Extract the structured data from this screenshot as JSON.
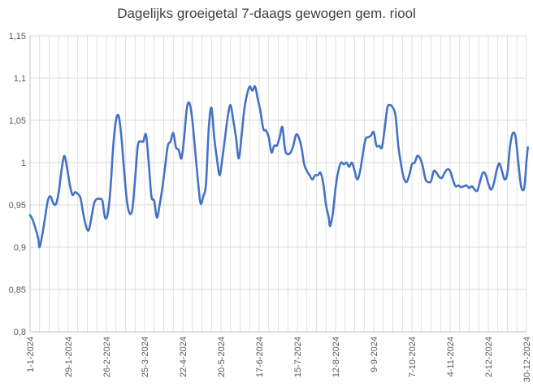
{
  "chart_data": {
    "type": "line",
    "title": "Dagelijks groeigetal 7-daags gewogen gem. riool",
    "xlabel": "",
    "ylabel": "",
    "ylim": [
      0.8,
      1.15
    ],
    "yticks": [
      0.8,
      0.85,
      0.9,
      0.95,
      1.0,
      1.05,
      1.1,
      1.15
    ],
    "ytick_labels": [
      "0,8",
      "0,85",
      "0,9",
      "0,95",
      "1",
      "1,05",
      "1,1",
      "1,15"
    ],
    "xlim": [
      "2024-01-01",
      "2024-12-30"
    ],
    "xticks": [
      "2024-01-01",
      "2024-01-29",
      "2024-02-26",
      "2024-03-25",
      "2024-04-22",
      "2024-05-20",
      "2024-06-17",
      "2024-07-15",
      "2024-08-12",
      "2024-09-09",
      "2024-10-07",
      "2024-11-04",
      "2024-12-02",
      "2024-12-30"
    ],
    "xtick_labels": [
      "1-1-2024",
      "29-1-2024",
      "26-2-2024",
      "25-3-2024",
      "22-4-2024",
      "20-5-2024",
      "17-6-2024",
      "15-7-2024",
      "12-8-2024",
      "9-9-2024",
      "7-10-2024",
      "4-11-2024",
      "2-12-2024",
      "30-12-2024"
    ],
    "grid": {
      "vertical": true,
      "horizontal": true
    },
    "legend": "none",
    "colors": {
      "line": "#4472C4",
      "grid": "#D9D9D9",
      "text": "#595959",
      "title": "#404040"
    },
    "series": [
      {
        "points": [
          [
            "2024-01-01",
            0.938
          ],
          [
            "2024-01-03",
            0.932
          ],
          [
            "2024-01-05",
            0.922
          ],
          [
            "2024-01-07",
            0.91
          ],
          [
            "2024-01-08",
            0.9
          ],
          [
            "2024-01-10",
            0.915
          ],
          [
            "2024-01-12",
            0.935
          ],
          [
            "2024-01-14",
            0.955
          ],
          [
            "2024-01-16",
            0.96
          ],
          [
            "2024-01-18",
            0.952
          ],
          [
            "2024-01-20",
            0.951
          ],
          [
            "2024-01-22",
            0.965
          ],
          [
            "2024-01-24",
            0.99
          ],
          [
            "2024-01-26",
            1.008
          ],
          [
            "2024-01-28",
            0.995
          ],
          [
            "2024-01-30",
            0.975
          ],
          [
            "2024-02-01",
            0.962
          ],
          [
            "2024-02-03",
            0.965
          ],
          [
            "2024-02-05",
            0.963
          ],
          [
            "2024-02-07",
            0.958
          ],
          [
            "2024-02-09",
            0.94
          ],
          [
            "2024-02-11",
            0.925
          ],
          [
            "2024-02-13",
            0.92
          ],
          [
            "2024-02-15",
            0.935
          ],
          [
            "2024-02-17",
            0.952
          ],
          [
            "2024-02-19",
            0.957
          ],
          [
            "2024-02-21",
            0.957
          ],
          [
            "2024-02-23",
            0.955
          ],
          [
            "2024-02-25",
            0.935
          ],
          [
            "2024-02-27",
            0.94
          ],
          [
            "2024-02-29",
            0.97
          ],
          [
            "2024-03-02",
            1.02
          ],
          [
            "2024-03-04",
            1.05
          ],
          [
            "2024-03-06",
            1.055
          ],
          [
            "2024-03-08",
            1.03
          ],
          [
            "2024-03-10",
            0.99
          ],
          [
            "2024-03-12",
            0.955
          ],
          [
            "2024-03-14",
            0.94
          ],
          [
            "2024-03-16",
            0.945
          ],
          [
            "2024-03-18",
            0.98
          ],
          [
            "2024-03-20",
            1.02
          ],
          [
            "2024-03-22",
            1.025
          ],
          [
            "2024-03-24",
            1.025
          ],
          [
            "2024-03-26",
            1.033
          ],
          [
            "2024-03-28",
            1.0
          ],
          [
            "2024-03-30",
            0.96
          ],
          [
            "2024-04-01",
            0.955
          ],
          [
            "2024-04-03",
            0.935
          ],
          [
            "2024-04-05",
            0.95
          ],
          [
            "2024-04-07",
            0.97
          ],
          [
            "2024-04-09",
            0.995
          ],
          [
            "2024-04-11",
            1.02
          ],
          [
            "2024-04-13",
            1.025
          ],
          [
            "2024-04-15",
            1.035
          ],
          [
            "2024-04-17",
            1.018
          ],
          [
            "2024-04-19",
            1.015
          ],
          [
            "2024-04-21",
            1.005
          ],
          [
            "2024-04-23",
            1.03
          ],
          [
            "2024-04-25",
            1.065
          ],
          [
            "2024-04-27",
            1.07
          ],
          [
            "2024-04-29",
            1.05
          ],
          [
            "2024-05-01",
            1.015
          ],
          [
            "2024-05-03",
            0.98
          ],
          [
            "2024-05-05",
            0.952
          ],
          [
            "2024-05-07",
            0.96
          ],
          [
            "2024-05-09",
            0.975
          ],
          [
            "2024-05-11",
            1.04
          ],
          [
            "2024-05-13",
            1.065
          ],
          [
            "2024-05-15",
            1.03
          ],
          [
            "2024-05-17",
            1.005
          ],
          [
            "2024-05-19",
            0.985
          ],
          [
            "2024-05-21",
            1.005
          ],
          [
            "2024-05-23",
            1.03
          ],
          [
            "2024-05-25",
            1.055
          ],
          [
            "2024-05-27",
            1.068
          ],
          [
            "2024-05-29",
            1.05
          ],
          [
            "2024-05-31",
            1.03
          ],
          [
            "2024-06-02",
            1.005
          ],
          [
            "2024-06-04",
            1.03
          ],
          [
            "2024-06-06",
            1.062
          ],
          [
            "2024-06-08",
            1.08
          ],
          [
            "2024-06-10",
            1.09
          ],
          [
            "2024-06-12",
            1.085
          ],
          [
            "2024-06-14",
            1.09
          ],
          [
            "2024-06-16",
            1.075
          ],
          [
            "2024-06-18",
            1.06
          ],
          [
            "2024-06-20",
            1.04
          ],
          [
            "2024-06-22",
            1.038
          ],
          [
            "2024-06-24",
            1.03
          ],
          [
            "2024-06-26",
            1.012
          ],
          [
            "2024-06-28",
            1.02
          ],
          [
            "2024-06-30",
            1.02
          ],
          [
            "2024-07-02",
            1.03
          ],
          [
            "2024-07-04",
            1.042
          ],
          [
            "2024-07-06",
            1.015
          ],
          [
            "2024-07-08",
            1.01
          ],
          [
            "2024-07-10",
            1.012
          ],
          [
            "2024-07-12",
            1.02
          ],
          [
            "2024-07-14",
            1.033
          ],
          [
            "2024-07-16",
            1.03
          ],
          [
            "2024-07-18",
            1.018
          ],
          [
            "2024-07-20",
            0.998
          ],
          [
            "2024-07-22",
            0.99
          ],
          [
            "2024-07-24",
            0.985
          ],
          [
            "2024-07-26",
            0.98
          ],
          [
            "2024-07-28",
            0.985
          ],
          [
            "2024-07-30",
            0.985
          ],
          [
            "2024-08-01",
            0.988
          ],
          [
            "2024-08-03",
            0.975
          ],
          [
            "2024-08-05",
            0.95
          ],
          [
            "2024-08-07",
            0.935
          ],
          [
            "2024-08-08",
            0.925
          ],
          [
            "2024-08-10",
            0.94
          ],
          [
            "2024-08-12",
            0.97
          ],
          [
            "2024-08-14",
            0.99
          ],
          [
            "2024-08-16",
            1.0
          ],
          [
            "2024-08-18",
            0.998
          ],
          [
            "2024-08-20",
            1.0
          ],
          [
            "2024-08-22",
            0.995
          ],
          [
            "2024-08-24",
            1.0
          ],
          [
            "2024-08-26",
            0.99
          ],
          [
            "2024-08-28",
            0.98
          ],
          [
            "2024-08-30",
            0.99
          ],
          [
            "2024-09-01",
            1.01
          ],
          [
            "2024-09-03",
            1.028
          ],
          [
            "2024-09-05",
            1.03
          ],
          [
            "2024-09-07",
            1.032
          ],
          [
            "2024-09-09",
            1.036
          ],
          [
            "2024-09-11",
            1.02
          ],
          [
            "2024-09-13",
            1.02
          ],
          [
            "2024-09-15",
            1.018
          ],
          [
            "2024-09-17",
            1.04
          ],
          [
            "2024-09-19",
            1.065
          ],
          [
            "2024-09-21",
            1.068
          ],
          [
            "2024-09-23",
            1.065
          ],
          [
            "2024-09-25",
            1.055
          ],
          [
            "2024-09-27",
            1.02
          ],
          [
            "2024-09-29",
            0.998
          ],
          [
            "2024-10-01",
            0.982
          ],
          [
            "2024-10-03",
            0.977
          ],
          [
            "2024-10-05",
            0.985
          ],
          [
            "2024-10-07",
            0.998
          ],
          [
            "2024-10-09",
            1.0
          ],
          [
            "2024-10-11",
            1.008
          ],
          [
            "2024-10-13",
            1.005
          ],
          [
            "2024-10-15",
            0.995
          ],
          [
            "2024-10-17",
            0.98
          ],
          [
            "2024-10-19",
            0.977
          ],
          [
            "2024-10-21",
            0.978
          ],
          [
            "2024-10-23",
            0.99
          ],
          [
            "2024-10-25",
            0.988
          ],
          [
            "2024-10-27",
            0.983
          ],
          [
            "2024-10-29",
            0.982
          ],
          [
            "2024-10-31",
            0.988
          ],
          [
            "2024-11-02",
            0.992
          ],
          [
            "2024-11-04",
            0.99
          ],
          [
            "2024-11-06",
            0.98
          ],
          [
            "2024-11-08",
            0.972
          ],
          [
            "2024-11-10",
            0.973
          ],
          [
            "2024-11-12",
            0.971
          ],
          [
            "2024-11-14",
            0.972
          ],
          [
            "2024-11-16",
            0.973
          ],
          [
            "2024-11-18",
            0.97
          ],
          [
            "2024-11-20",
            0.972
          ],
          [
            "2024-11-22",
            0.968
          ],
          [
            "2024-11-24",
            0.967
          ],
          [
            "2024-11-26",
            0.978
          ],
          [
            "2024-11-28",
            0.988
          ],
          [
            "2024-11-30",
            0.986
          ],
          [
            "2024-12-02",
            0.975
          ],
          [
            "2024-12-04",
            0.968
          ],
          [
            "2024-12-06",
            0.975
          ],
          [
            "2024-12-08",
            0.99
          ],
          [
            "2024-12-10",
            0.999
          ],
          [
            "2024-12-12",
            0.99
          ],
          [
            "2024-12-14",
            0.98
          ],
          [
            "2024-12-16",
            0.988
          ],
          [
            "2024-12-18",
            1.02
          ],
          [
            "2024-12-20",
            1.035
          ],
          [
            "2024-12-22",
            1.03
          ],
          [
            "2024-12-24",
            1.0
          ],
          [
            "2024-12-26",
            0.972
          ],
          [
            "2024-12-28",
            0.968
          ],
          [
            "2024-12-29",
            0.98
          ],
          [
            "2024-12-30",
            1.002
          ],
          [
            "2024-12-31",
            1.018
          ]
        ]
      }
    ]
  }
}
